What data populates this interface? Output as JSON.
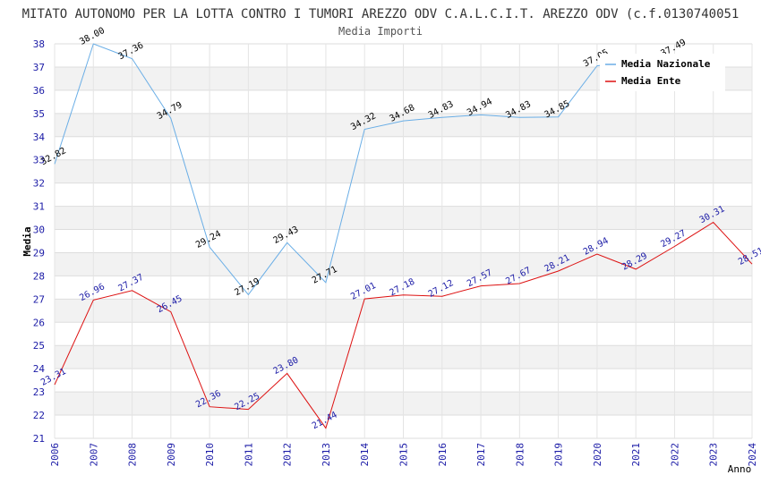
{
  "chart_data": {
    "type": "line",
    "title": "MITATO AUTONOMO PER LA LOTTA CONTRO I TUMORI AREZZO ODV C.A.L.C.I.T. AREZZO ODV (c.f.0130740051",
    "subtitle": "Media Importi",
    "xlabel": "Anno",
    "ylabel": "Media",
    "ylim": [
      21,
      38
    ],
    "yticks": [
      21,
      22,
      23,
      24,
      25,
      26,
      27,
      28,
      29,
      30,
      31,
      32,
      33,
      34,
      35,
      36,
      37,
      38
    ],
    "categories": [
      "2006",
      "2007",
      "2008",
      "2009",
      "2010",
      "2011",
      "2012",
      "2013",
      "2014",
      "2015",
      "2016",
      "2017",
      "2018",
      "2019",
      "2020",
      "2021",
      "2022",
      "2023",
      "2024"
    ],
    "series": [
      {
        "name": "Media Nazionale",
        "color": "#6aaee6",
        "values": [
          32.82,
          38.0,
          37.36,
          34.79,
          29.24,
          27.19,
          29.43,
          27.71,
          34.32,
          34.68,
          34.83,
          34.94,
          34.83,
          34.85,
          37.05,
          null,
          37.49,
          null,
          null
        ],
        "labels": [
          "32.82",
          "38.00",
          "37.36",
          "34.79",
          "29.24",
          "27.19",
          "29.43",
          "27.71",
          "34.32",
          "34.68",
          "34.83",
          "34.94",
          "34.83",
          "34.85",
          "37.05",
          "",
          "37.49",
          "",
          ""
        ]
      },
      {
        "name": "Media Ente",
        "color": "#dd1111",
        "values": [
          23.31,
          26.96,
          27.37,
          26.45,
          22.36,
          22.25,
          23.8,
          21.44,
          27.01,
          27.18,
          27.12,
          27.57,
          27.67,
          28.21,
          28.94,
          28.29,
          29.27,
          30.31,
          28.51
        ],
        "labels": [
          "23.31",
          "26.96",
          "27.37",
          "26.45",
          "22.36",
          "22.25",
          "23.80",
          "21.44",
          "27.01",
          "27.18",
          "27.12",
          "27.57",
          "27.67",
          "28.21",
          "28.94",
          "28.29",
          "29.27",
          "30.31",
          "28.51"
        ]
      }
    ],
    "grid": true,
    "legend": "top-right"
  }
}
